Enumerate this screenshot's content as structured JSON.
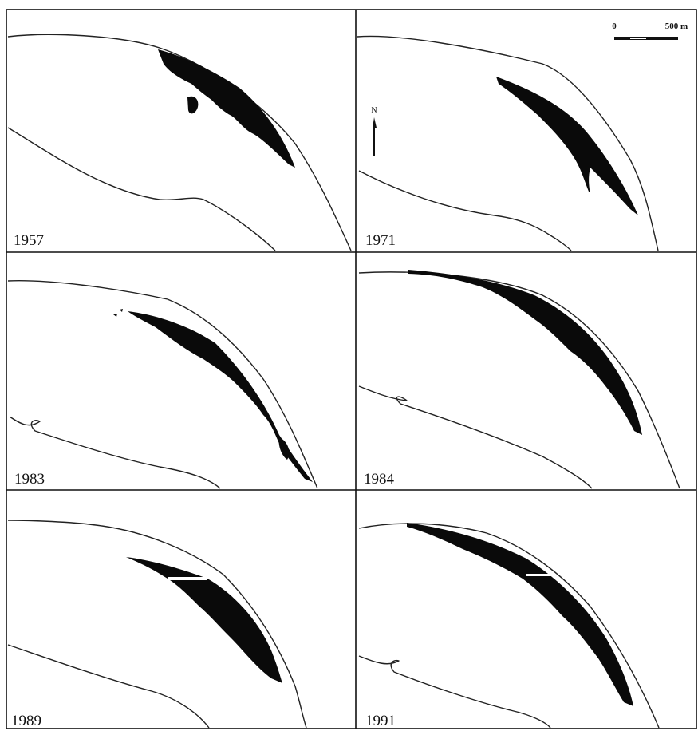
{
  "figure": {
    "panels": [
      {
        "year": "1957"
      },
      {
        "year": "1971"
      },
      {
        "year": "1983"
      },
      {
        "year": "1984"
      },
      {
        "year": "1989"
      },
      {
        "year": "1991"
      }
    ],
    "scale_bar": {
      "start_label": "0",
      "end_label": "500 m"
    },
    "north_arrow": {
      "label": "N"
    },
    "colors": {
      "cover": "#0a0a0a",
      "line": "#222222",
      "background": "#ffffff"
    }
  }
}
